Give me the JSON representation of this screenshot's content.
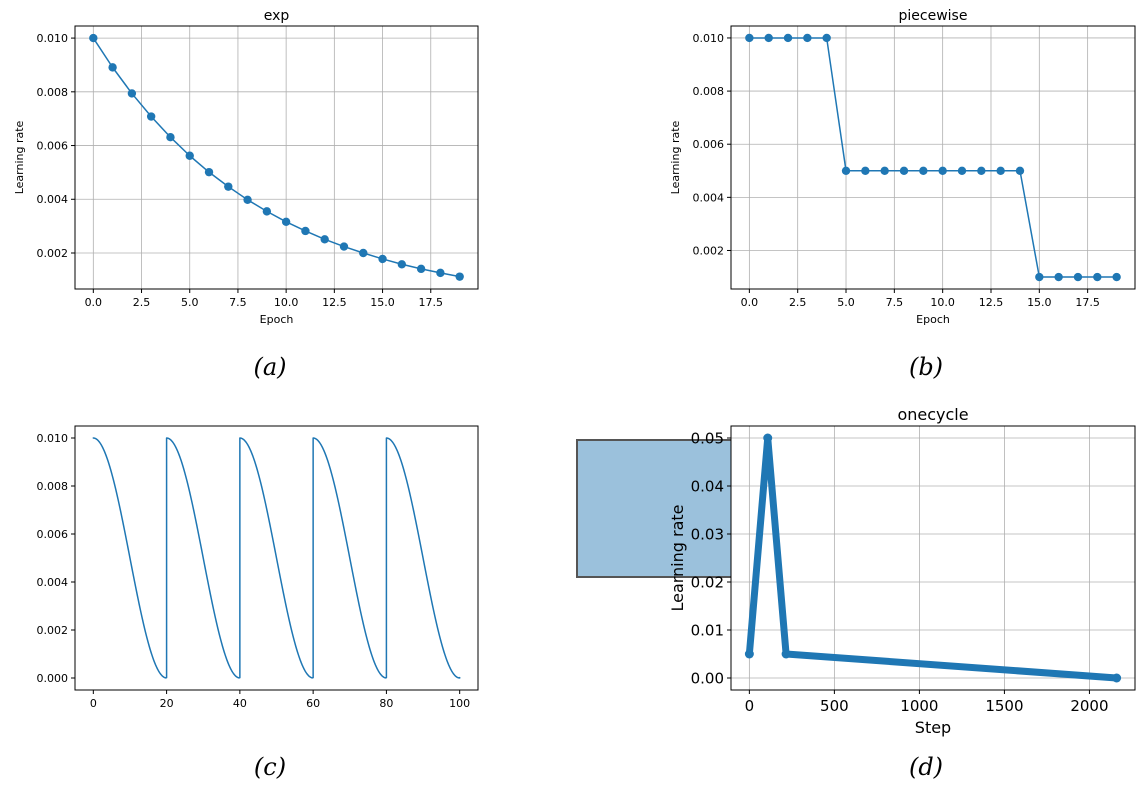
{
  "chart_data": [
    {
      "id": "a",
      "type": "line",
      "title": "exp",
      "xlabel": "Epoch",
      "ylabel": "Learning rate",
      "caption": "(a)",
      "xlim": [
        -0.95,
        19.95
      ],
      "ylim": [
        0.00066,
        0.01045
      ],
      "xticks": [
        0,
        2.5,
        5,
        7.5,
        10,
        12.5,
        15,
        17.5
      ],
      "xtick_labels": [
        "0.0",
        "2.5",
        "5.0",
        "7.5",
        "10.0",
        "12.5",
        "15.0",
        "17.5"
      ],
      "yticks": [
        0.002,
        0.004,
        0.006,
        0.008,
        0.01
      ],
      "ytick_labels": [
        "0.002",
        "0.004",
        "0.006",
        "0.008",
        "0.010"
      ],
      "grid": true,
      "markers": true,
      "color": "#1f77b4",
      "x": [
        0,
        1,
        2,
        3,
        4,
        5,
        6,
        7,
        8,
        9,
        10,
        11,
        12,
        13,
        14,
        15,
        16,
        17,
        18,
        19
      ],
      "y": [
        0.01,
        0.00891,
        0.00794,
        0.00708,
        0.00631,
        0.00562,
        0.00501,
        0.00447,
        0.00398,
        0.00355,
        0.00316,
        0.00282,
        0.00251,
        0.00224,
        0.002,
        0.00178,
        0.00158,
        0.00141,
        0.00126,
        0.00112
      ]
    },
    {
      "id": "b",
      "type": "line",
      "title": "piecewise",
      "xlabel": "Epoch",
      "ylabel": "Learning rate",
      "caption": "(b)",
      "xlim": [
        -0.95,
        19.95
      ],
      "ylim": [
        0.00055,
        0.01045
      ],
      "xticks": [
        0,
        2.5,
        5,
        7.5,
        10,
        12.5,
        15,
        17.5
      ],
      "xtick_labels": [
        "0.0",
        "2.5",
        "5.0",
        "7.5",
        "10.0",
        "12.5",
        "15.0",
        "17.5"
      ],
      "yticks": [
        0.002,
        0.004,
        0.006,
        0.008,
        0.01
      ],
      "ytick_labels": [
        "0.002",
        "0.004",
        "0.006",
        "0.008",
        "0.010"
      ],
      "grid": true,
      "markers": true,
      "color": "#1f77b4",
      "x": [
        0,
        1,
        2,
        3,
        4,
        5,
        6,
        7,
        8,
        9,
        10,
        11,
        12,
        13,
        14,
        15,
        16,
        17,
        18,
        19
      ],
      "y": [
        0.01,
        0.01,
        0.01,
        0.01,
        0.01,
        0.005,
        0.005,
        0.005,
        0.005,
        0.005,
        0.005,
        0.005,
        0.005,
        0.005,
        0.005,
        0.001,
        0.001,
        0.001,
        0.001,
        0.001
      ]
    },
    {
      "id": "c",
      "type": "line",
      "title": "",
      "xlabel": "",
      "ylabel": "",
      "caption": "(c)",
      "xlim": [
        -5,
        105
      ],
      "ylim": [
        -0.0005,
        0.0105
      ],
      "xticks": [
        0,
        20,
        40,
        60,
        80,
        100
      ],
      "xtick_labels": [
        "0",
        "20",
        "40",
        "60",
        "80",
        "100"
      ],
      "yticks": [
        0.0,
        0.002,
        0.004,
        0.006,
        0.008,
        0.01
      ],
      "ytick_labels": [
        "0.000",
        "0.002",
        "0.004",
        "0.006",
        "0.008",
        "0.010"
      ],
      "grid": false,
      "markers": false,
      "color": "#1f77b4",
      "schedule": "cosine warm restarts",
      "period": 20,
      "lr_max": 0.01,
      "lr_min": 0.0,
      "x_range": [
        0,
        100
      ]
    },
    {
      "id": "d",
      "type": "line",
      "title": "onecycle",
      "xlabel": "Step",
      "ylabel": "Learning rate",
      "caption": "(d)",
      "xlim": [
        -108,
        2268
      ],
      "ylim": [
        -0.0025,
        0.0525
      ],
      "xticks": [
        0,
        500,
        1000,
        1500,
        2000
      ],
      "xtick_labels": [
        "0",
        "500",
        "1000",
        "1500",
        "2000"
      ],
      "yticks": [
        0.0,
        0.01,
        0.02,
        0.03,
        0.04,
        0.05
      ],
      "ytick_labels": [
        "0.00",
        "0.01",
        "0.02",
        "0.03",
        "0.04",
        "0.05"
      ],
      "grid": true,
      "markers": true,
      "thick": true,
      "color": "#1f77b4",
      "x": [
        0,
        108,
        216,
        2160
      ],
      "y": [
        0.005,
        0.05,
        0.005,
        0.0
      ]
    }
  ]
}
